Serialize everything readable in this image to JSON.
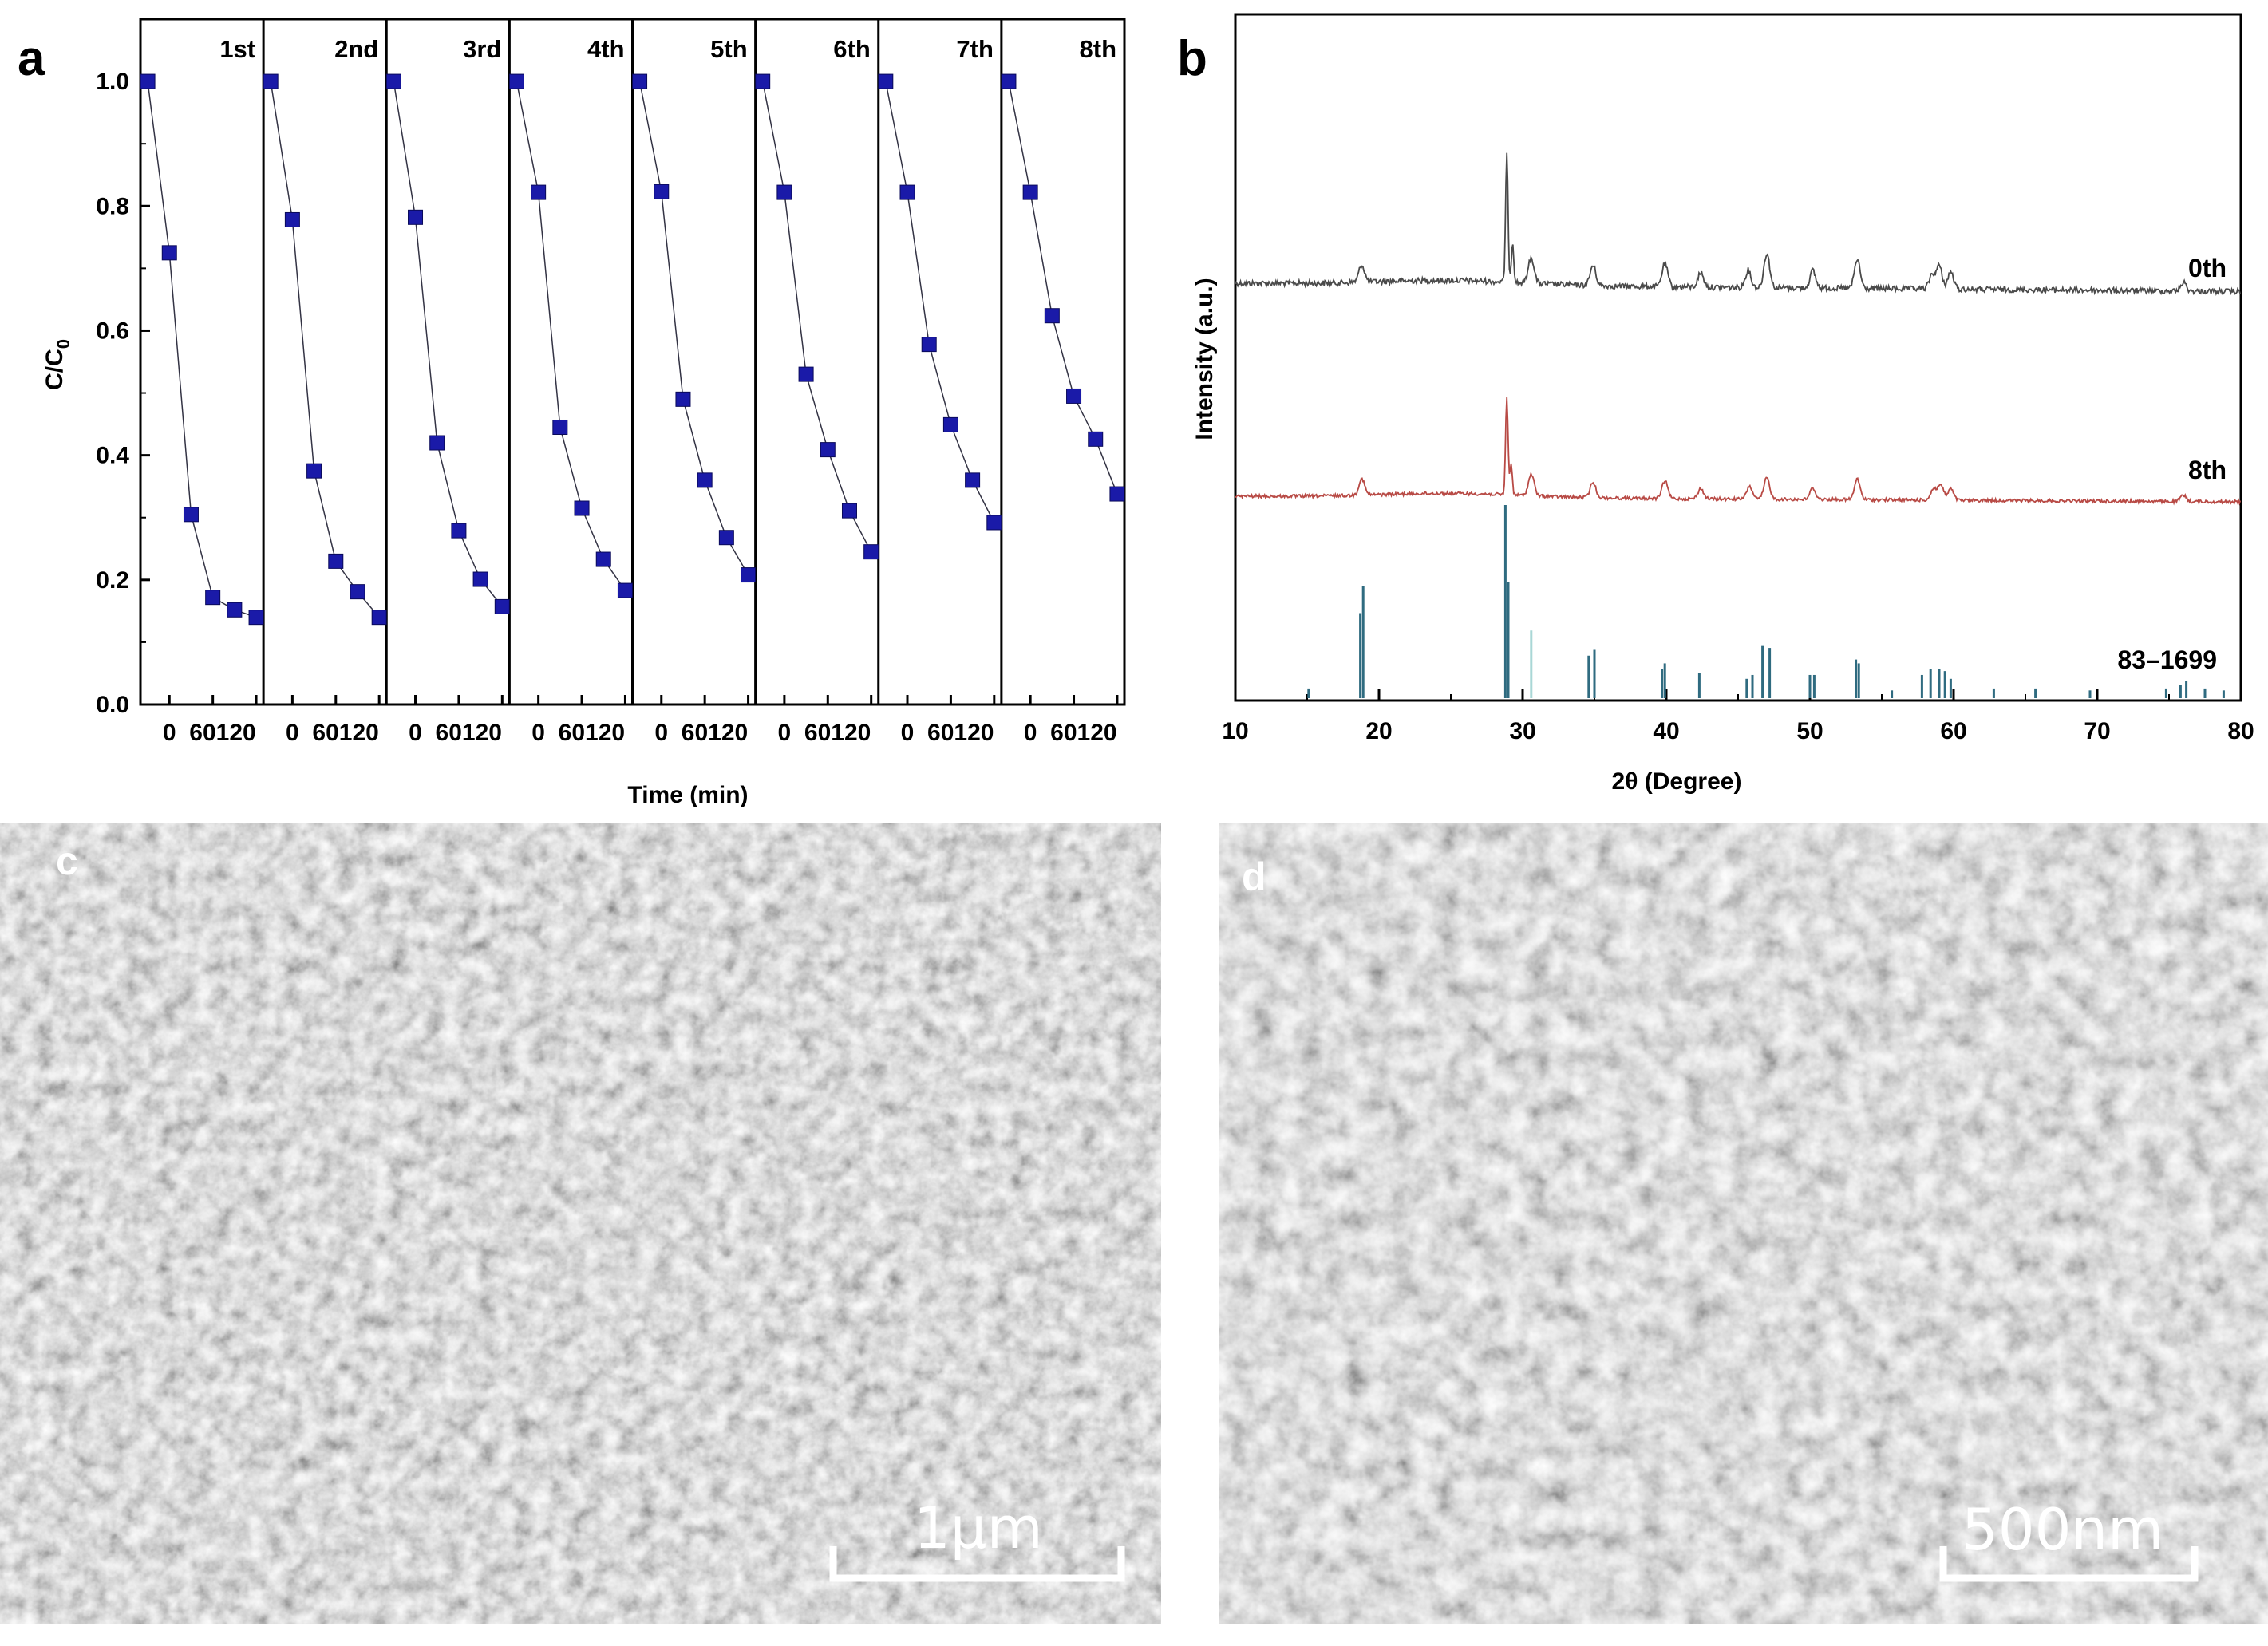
{
  "panels": {
    "a": {
      "letter": "a"
    },
    "b": {
      "letter": "b"
    },
    "c": {
      "letter": "c",
      "scale_label": "1μm"
    },
    "d": {
      "letter": "d",
      "scale_label": "500nm"
    }
  },
  "colors": {
    "marker": "#1a1aa8",
    "marker_line": "#333344",
    "trace_0th": "#4a4a4a",
    "trace_8th": "#b84a45",
    "ref_bars": "#2f6b80",
    "sem_bg": "#3a3a3a"
  },
  "chart_data": [
    {
      "type": "scatter",
      "panel": "a",
      "xlabel": "Time (min)",
      "ylabel": "C/C0",
      "ylabel_main": "C/C",
      "ylabel_sub": "0",
      "ylim": [
        0.0,
        1.1
      ],
      "yticks": [
        "0.0",
        "0.2",
        "0.4",
        "0.6",
        "0.8",
        "1.0"
      ],
      "xlim": [
        -40,
        130
      ],
      "xtick_labels": [
        "0",
        "60",
        "120"
      ],
      "x": [
        -30,
        0,
        30,
        60,
        90,
        120
      ],
      "series": [
        {
          "name": "1st",
          "values": [
            1.0,
            0.725,
            0.305,
            0.172,
            0.152,
            0.14
          ]
        },
        {
          "name": "2nd",
          "values": [
            1.0,
            0.778,
            0.375,
            0.23,
            0.181,
            0.14
          ]
        },
        {
          "name": "3rd",
          "values": [
            1.0,
            0.782,
            0.42,
            0.279,
            0.201,
            0.157
          ]
        },
        {
          "name": "4th",
          "values": [
            1.0,
            0.822,
            0.445,
            0.315,
            0.233,
            0.183
          ]
        },
        {
          "name": "5th",
          "values": [
            1.0,
            0.823,
            0.49,
            0.36,
            0.268,
            0.208
          ]
        },
        {
          "name": "6th",
          "values": [
            1.0,
            0.822,
            0.53,
            0.409,
            0.311,
            0.245
          ]
        },
        {
          "name": "7th",
          "values": [
            1.0,
            0.822,
            0.578,
            0.449,
            0.36,
            0.292
          ]
        },
        {
          "name": "8th",
          "values": [
            1.0,
            0.822,
            0.624,
            0.495,
            0.426,
            0.338
          ]
        }
      ],
      "grid": false
    },
    {
      "type": "line",
      "panel": "b",
      "xlabel": "2θ (Degree)",
      "ylabel": "Intensity (a.u.)",
      "xlim": [
        10,
        80
      ],
      "xticks": [
        "10",
        "20",
        "30",
        "40",
        "50",
        "60",
        "70",
        "80"
      ],
      "series": [
        {
          "name": "0th",
          "color": "#4a4a4a",
          "peaks": [
            [
              18.8,
              0.3
            ],
            [
              28.9,
              2.2
            ],
            [
              29.3,
              0.7
            ],
            [
              30.6,
              0.45
            ],
            [
              34.9,
              0.35
            ],
            [
              39.9,
              0.4
            ],
            [
              42.4,
              0.25
            ],
            [
              45.7,
              0.3
            ],
            [
              47.0,
              0.6
            ],
            [
              50.2,
              0.3
            ],
            [
              53.3,
              0.5
            ],
            [
              58.5,
              0.25
            ],
            [
              59.0,
              0.4
            ],
            [
              59.8,
              0.3
            ],
            [
              76.0,
              0.15
            ]
          ]
        },
        {
          "name": "8th",
          "color": "#b84a45",
          "peaks": [
            [
              18.8,
              0.32
            ],
            [
              28.9,
              1.9
            ],
            [
              29.2,
              0.6
            ],
            [
              30.6,
              0.42
            ],
            [
              34.9,
              0.3
            ],
            [
              39.9,
              0.35
            ],
            [
              42.4,
              0.2
            ],
            [
              45.8,
              0.25
            ],
            [
              47.0,
              0.42
            ],
            [
              50.2,
              0.22
            ],
            [
              53.3,
              0.4
            ],
            [
              58.6,
              0.22
            ],
            [
              59.1,
              0.3
            ],
            [
              59.8,
              0.22
            ],
            [
              76.0,
              0.12
            ]
          ]
        },
        {
          "name": "83–1699",
          "type": "reference",
          "bars": [
            [
              15.1,
              0.05
            ],
            [
              18.7,
              0.44
            ],
            [
              18.9,
              0.58
            ],
            [
              28.8,
              1.0
            ],
            [
              29.0,
              0.6
            ],
            [
              30.6,
              0.35
            ],
            [
              34.6,
              0.22
            ],
            [
              35.0,
              0.25
            ],
            [
              39.7,
              0.15
            ],
            [
              39.9,
              0.18
            ],
            [
              42.3,
              0.13
            ],
            [
              45.6,
              0.1
            ],
            [
              46.0,
              0.12
            ],
            [
              46.7,
              0.27
            ],
            [
              47.2,
              0.26
            ],
            [
              50.0,
              0.12
            ],
            [
              50.3,
              0.12
            ],
            [
              53.2,
              0.2
            ],
            [
              53.4,
              0.18
            ],
            [
              55.7,
              0.04
            ],
            [
              57.8,
              0.12
            ],
            [
              58.4,
              0.15
            ],
            [
              59.0,
              0.15
            ],
            [
              59.4,
              0.14
            ],
            [
              59.8,
              0.1
            ],
            [
              62.8,
              0.05
            ],
            [
              65.7,
              0.05
            ],
            [
              69.5,
              0.04
            ],
            [
              74.8,
              0.05
            ],
            [
              75.8,
              0.07
            ],
            [
              76.2,
              0.09
            ],
            [
              77.5,
              0.05
            ],
            [
              78.8,
              0.04
            ]
          ]
        }
      ],
      "grid": false
    }
  ]
}
